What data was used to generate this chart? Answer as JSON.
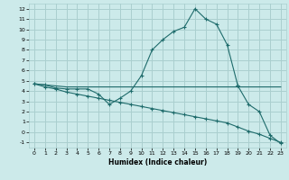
{
  "xlabel": "Humidex (Indice chaleur)",
  "bg_color": "#cceaea",
  "grid_color": "#aacfcf",
  "line_color": "#1e6b6b",
  "xlim": [
    -0.5,
    23.5
  ],
  "ylim": [
    -1.5,
    12.5
  ],
  "xticks": [
    0,
    1,
    2,
    3,
    4,
    5,
    6,
    7,
    8,
    9,
    10,
    11,
    12,
    13,
    14,
    15,
    16,
    17,
    18,
    19,
    20,
    21,
    22,
    23
  ],
  "yticks": [
    -1,
    0,
    1,
    2,
    3,
    4,
    5,
    6,
    7,
    8,
    9,
    10,
    11,
    12
  ],
  "line1_x": [
    0,
    1,
    2,
    3,
    4,
    5,
    6,
    7,
    8,
    9,
    10,
    11,
    12,
    13,
    14,
    15,
    16,
    17,
    18,
    19
  ],
  "line1_y": [
    4.7,
    4.6,
    4.3,
    4.2,
    4.2,
    4.2,
    3.7,
    2.7,
    3.3,
    4.0,
    5.5,
    8.0,
    9.0,
    9.8,
    10.2,
    12.0,
    11.0,
    10.5,
    8.5,
    4.5
  ],
  "line2_x": [
    0,
    1,
    2,
    3,
    4,
    5,
    6,
    7,
    8,
    9,
    10,
    11,
    12,
    13,
    14,
    15,
    16,
    17,
    18,
    19,
    20,
    21,
    22,
    23
  ],
  "line2_y": [
    4.7,
    4.6,
    4.5,
    4.4,
    4.4,
    4.4,
    4.4,
    4.4,
    4.4,
    4.4,
    4.4,
    4.4,
    4.4,
    4.4,
    4.4,
    4.4,
    4.4,
    4.4,
    4.4,
    4.4,
    4.4,
    4.4,
    4.4,
    4.4
  ],
  "line3_x": [
    0,
    1,
    2,
    3,
    4,
    5,
    6,
    7,
    8,
    9,
    10,
    11,
    12,
    13,
    14,
    15,
    16,
    17,
    18,
    19,
    20,
    21,
    22,
    23
  ],
  "line3_y": [
    4.7,
    4.4,
    4.2,
    3.9,
    3.7,
    3.5,
    3.3,
    3.1,
    2.9,
    2.7,
    2.5,
    2.3,
    2.1,
    1.9,
    1.7,
    1.5,
    1.3,
    1.1,
    0.9,
    0.5,
    0.1,
    -0.2,
    -0.6,
    -1.0
  ],
  "line4_x": [
    19,
    20,
    21,
    22,
    23
  ],
  "line4_y": [
    4.5,
    2.7,
    2.0,
    -0.3,
    -1.1
  ]
}
